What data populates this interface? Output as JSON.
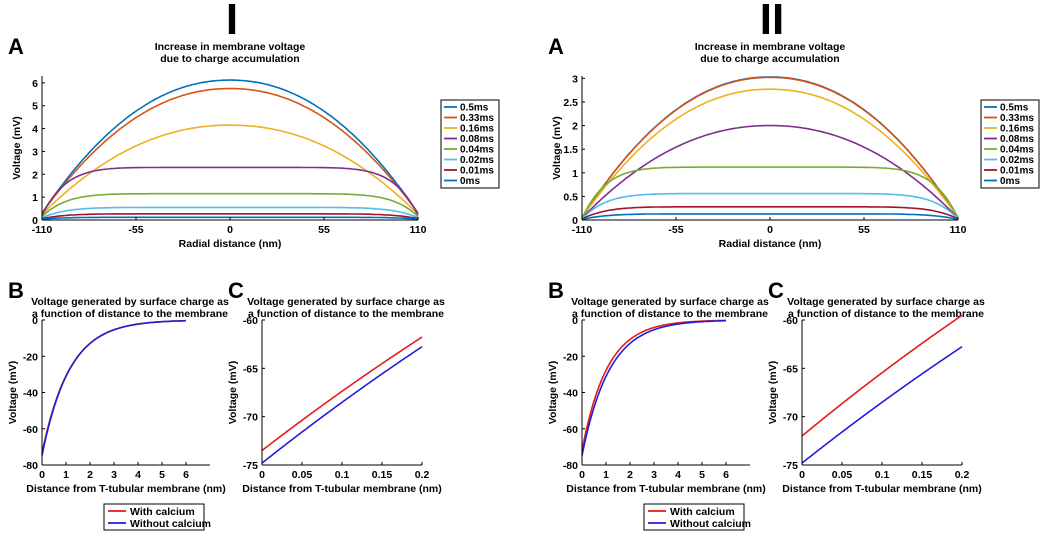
{
  "panels": [
    {
      "roman": "I",
      "chart_data": [
        {
          "letter": "A",
          "type": "line",
          "title": [
            "Increase in membrane voltage",
            "due to charge accumulation"
          ],
          "xlabel": "Radial distance (nm)",
          "ylabel": "Voltage (mV)",
          "xlim": [
            -110,
            110
          ],
          "ylim": [
            0,
            6.3
          ],
          "xticks": [
            "-110",
            "-55",
            "0",
            "55",
            "110"
          ],
          "xtick_values": [
            -110,
            -55,
            0,
            55,
            110
          ],
          "yticks": [
            "0",
            "1",
            "2",
            "3",
            "4",
            "5",
            "6"
          ],
          "ytick_values": [
            0,
            1,
            2,
            3,
            4,
            5,
            6
          ],
          "legend": [
            "0.5ms",
            "0.33ms",
            "0.16ms",
            "0.08ms",
            "0.04ms",
            "0.02ms",
            "0.01ms",
            "0ms"
          ],
          "series": [
            {
              "name": "0.5ms",
              "color": "#0072bd",
              "kind": "dome",
              "peak": 6.12,
              "edge": 0.3
            },
            {
              "name": "0.33ms",
              "color": "#d95319",
              "kind": "dome",
              "peak": 5.75,
              "edge": 0.3
            },
            {
              "name": "0.16ms",
              "color": "#edb120",
              "kind": "dome",
              "peak": 4.15,
              "edge": 0.25
            },
            {
              "name": "0.08ms",
              "color": "#7e2f8e",
              "kind": "plateau",
              "peak": 2.3,
              "edge": 0.2
            },
            {
              "name": "0.04ms",
              "color": "#77ac30",
              "kind": "plateau",
              "peak": 1.15,
              "edge": 0.15
            },
            {
              "name": "0.02ms",
              "color": "#4dbeee",
              "kind": "plateau",
              "peak": 0.55,
              "edge": 0.1
            },
            {
              "name": "0.01ms",
              "color": "#a2142f",
              "kind": "plateau",
              "peak": 0.27,
              "edge": 0.06
            },
            {
              "name": "0ms",
              "color": "#0072bd",
              "kind": "plateau",
              "peak": 0.12,
              "edge": 0.04
            }
          ]
        },
        {
          "letter": "B",
          "type": "line",
          "title": [
            "Voltage generated by surface charge as",
            "a function of distance to the membrane"
          ],
          "xlabel": "Distance from T-tubular membrane (nm)",
          "ylabel": "Voltage (mV)",
          "xlim": [
            0,
            7
          ],
          "ylim": [
            -80,
            0
          ],
          "xticks": [
            "0",
            "1",
            "2",
            "3",
            "4",
            "5",
            "6"
          ],
          "xtick_values": [
            0,
            1,
            2,
            3,
            4,
            5,
            6
          ],
          "yticks": [
            "-80",
            "-60",
            "-40",
            "-20",
            "0"
          ],
          "ytick_values": [
            -80,
            -60,
            -40,
            -20,
            0
          ],
          "series": [
            {
              "name": "With calcium",
              "color": "#e41a1c",
              "kind": "exp",
              "v0": -73.5,
              "decay": 1.15,
              "xmax": 6
            },
            {
              "name": "Without calcium",
              "color": "#1f1fd6",
              "kind": "exp",
              "v0": -74.8,
              "decay": 1.14,
              "xmax": 6
            }
          ]
        },
        {
          "letter": "C",
          "type": "line",
          "title": [
            "Voltage generated by surface charge as",
            "a function of distance to the membrane"
          ],
          "xlabel": "Distance from T-tubular membrane (nm)",
          "ylabel": "Voltage (mV)",
          "xlim": [
            0,
            0.2
          ],
          "ylim": [
            -75,
            -60
          ],
          "xticks": [
            "0",
            "0.05",
            "0.1",
            "0.15",
            "0.2"
          ],
          "xtick_values": [
            0,
            0.05,
            0.1,
            0.15,
            0.2
          ],
          "yticks": [
            "-75",
            "-70",
            "-65",
            "-60"
          ],
          "ytick_values": [
            -75,
            -70,
            -65,
            -60
          ],
          "series": [
            {
              "name": "With calcium",
              "color": "#e41a1c",
              "kind": "exp",
              "v0": -73.5,
              "decay": 1.15,
              "xmax": 0.2
            },
            {
              "name": "Without calcium",
              "color": "#1f1fd6",
              "kind": "exp",
              "v0": -74.8,
              "decay": 1.14,
              "xmax": 0.2
            }
          ]
        }
      ],
      "bottom_legend": [
        "With calcium",
        "Without calcium"
      ]
    },
    {
      "roman": "II",
      "chart_data": [
        {
          "letter": "A",
          "type": "line",
          "title": [
            "Increase in membrane voltage",
            "due to charge accumulation"
          ],
          "xlabel": "Radial distance (nm)",
          "ylabel": "Voltage (mV)",
          "xlim": [
            -110,
            110
          ],
          "ylim": [
            0,
            3.05
          ],
          "xticks": [
            "-110",
            "-55",
            "0",
            "55",
            "110"
          ],
          "xtick_values": [
            -110,
            -55,
            0,
            55,
            110
          ],
          "yticks": [
            "0",
            "0.5",
            "1",
            "1.5",
            "2",
            "2.5",
            "3"
          ],
          "ytick_values": [
            0,
            0.5,
            1,
            1.5,
            2,
            2.5,
            3
          ],
          "legend": [
            "0.5ms",
            "0.33ms",
            "0.16ms",
            "0.08ms",
            "0.04ms",
            "0.02ms",
            "0.01ms",
            "0ms"
          ],
          "series": [
            {
              "name": "0.5ms",
              "color": "#0072bd",
              "kind": "dome",
              "peak": 3.03,
              "edge": 0.05
            },
            {
              "name": "0.33ms",
              "color": "#d95319",
              "kind": "dome",
              "peak": 3.02,
              "edge": 0.05
            },
            {
              "name": "0.16ms",
              "color": "#edb120",
              "kind": "dome",
              "peak": 2.77,
              "edge": 0.05
            },
            {
              "name": "0.08ms",
              "color": "#7e2f8e",
              "kind": "dome",
              "peak": 2.0,
              "edge": 0.04
            },
            {
              "name": "0.04ms",
              "color": "#77ac30",
              "kind": "plateau",
              "peak": 1.12,
              "edge": 0.03
            },
            {
              "name": "0.02ms",
              "color": "#4dbeee",
              "kind": "plateau",
              "peak": 0.56,
              "edge": 0.02
            },
            {
              "name": "0.01ms",
              "color": "#a2142f",
              "kind": "plateau",
              "peak": 0.28,
              "edge": 0.02
            },
            {
              "name": "0ms",
              "color": "#0072bd",
              "kind": "plateau",
              "peak": 0.13,
              "edge": 0.01
            }
          ]
        },
        {
          "letter": "B",
          "type": "line",
          "title": [
            "Voltage generated by surface charge as",
            "a function of distance to the membrane"
          ],
          "xlabel": "Distance from T-tubular membrane (nm)",
          "ylabel": "Voltage (mV)",
          "xlim": [
            0,
            7
          ],
          "ylim": [
            -80,
            0
          ],
          "xticks": [
            "0",
            "1",
            "2",
            "3",
            "4",
            "5",
            "6"
          ],
          "xtick_values": [
            0,
            1,
            2,
            3,
            4,
            5,
            6
          ],
          "yticks": [
            "-80",
            "-60",
            "-40",
            "-20",
            "0"
          ],
          "ytick_values": [
            -80,
            -60,
            -40,
            -20,
            0
          ],
          "series": [
            {
              "name": "With calcium",
              "color": "#e41a1c",
              "kind": "exp",
              "v0": -72.0,
              "decay": 1.05,
              "xmax": 6
            },
            {
              "name": "Without calcium",
              "color": "#1f1fd6",
              "kind": "exp",
              "v0": -74.8,
              "decay": 1.14,
              "xmax": 6
            }
          ]
        },
        {
          "letter": "C",
          "type": "line",
          "title": [
            "Voltage generated by surface charge as",
            "a function of distance to the membrane"
          ],
          "xlabel": "Distance from T-tubular membrane (nm)",
          "ylabel": "Voltage (mV)",
          "xlim": [
            0,
            0.2
          ],
          "ylim": [
            -75,
            -60
          ],
          "xticks": [
            "0",
            "0.05",
            "0.1",
            "0.15",
            "0.2"
          ],
          "xtick_values": [
            0,
            0.05,
            0.1,
            0.15,
            0.2
          ],
          "yticks": [
            "-75",
            "-70",
            "-65",
            "-60"
          ],
          "ytick_values": [
            -75,
            -70,
            -65,
            -60
          ],
          "series": [
            {
              "name": "With calcium",
              "color": "#e41a1c",
              "kind": "exp",
              "v0": -72.0,
              "decay": 1.05,
              "xmax": 0.2
            },
            {
              "name": "Without calcium",
              "color": "#1f1fd6",
              "kind": "exp",
              "v0": -74.8,
              "decay": 1.14,
              "xmax": 0.2
            }
          ]
        }
      ],
      "bottom_legend": [
        "With calcium",
        "Without calcium"
      ]
    }
  ]
}
